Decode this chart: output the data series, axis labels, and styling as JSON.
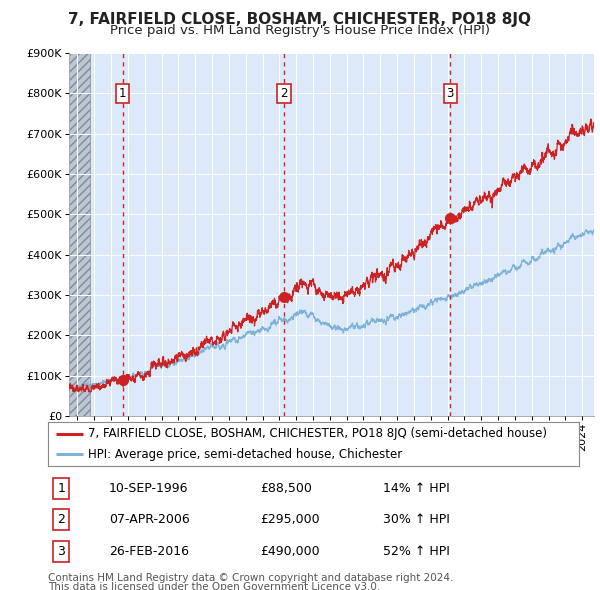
{
  "title": "7, FAIRFIELD CLOSE, BOSHAM, CHICHESTER, PO18 8JQ",
  "subtitle": "Price paid vs. HM Land Registry's House Price Index (HPI)",
  "ylim": [
    0,
    900000
  ],
  "xlim_start": 1993.5,
  "xlim_end": 2024.7,
  "yticks": [
    0,
    100000,
    200000,
    300000,
    400000,
    500000,
    600000,
    700000,
    800000,
    900000
  ],
  "ytick_labels": [
    "£0",
    "£100K",
    "£200K",
    "£300K",
    "£400K",
    "£500K",
    "£600K",
    "£700K",
    "£800K",
    "£900K"
  ],
  "plot_bg_color": "#dce9f8",
  "grid_color": "#ffffff",
  "hpi_line_color": "#7eb3d8",
  "price_line_color": "#cc2222",
  "sale_marker_color": "#cc2222",
  "dashed_line_color": "#cc2222",
  "hatch_end": 1994.75,
  "sale_dates_decimal": [
    1996.69,
    2006.27,
    2016.16
  ],
  "sale_prices": [
    88500,
    295000,
    490000
  ],
  "sale_labels": [
    "1",
    "2",
    "3"
  ],
  "legend_property": "7, FAIRFIELD CLOSE, BOSHAM, CHICHESTER, PO18 8JQ (semi-detached house)",
  "legend_hpi": "HPI: Average price, semi-detached house, Chichester",
  "table_rows": [
    [
      "1",
      "10-SEP-1996",
      "£88,500",
      "14% ↑ HPI"
    ],
    [
      "2",
      "07-APR-2006",
      "£295,000",
      "30% ↑ HPI"
    ],
    [
      "3",
      "26-FEB-2016",
      "£490,000",
      "52% ↑ HPI"
    ]
  ],
  "footer_line1": "Contains HM Land Registry data © Crown copyright and database right 2024.",
  "footer_line2": "This data is licensed under the Open Government Licence v3.0.",
  "title_fontsize": 11,
  "subtitle_fontsize": 9.5,
  "tick_fontsize": 8,
  "legend_fontsize": 8.5,
  "table_fontsize": 9,
  "footer_fontsize": 7.5
}
